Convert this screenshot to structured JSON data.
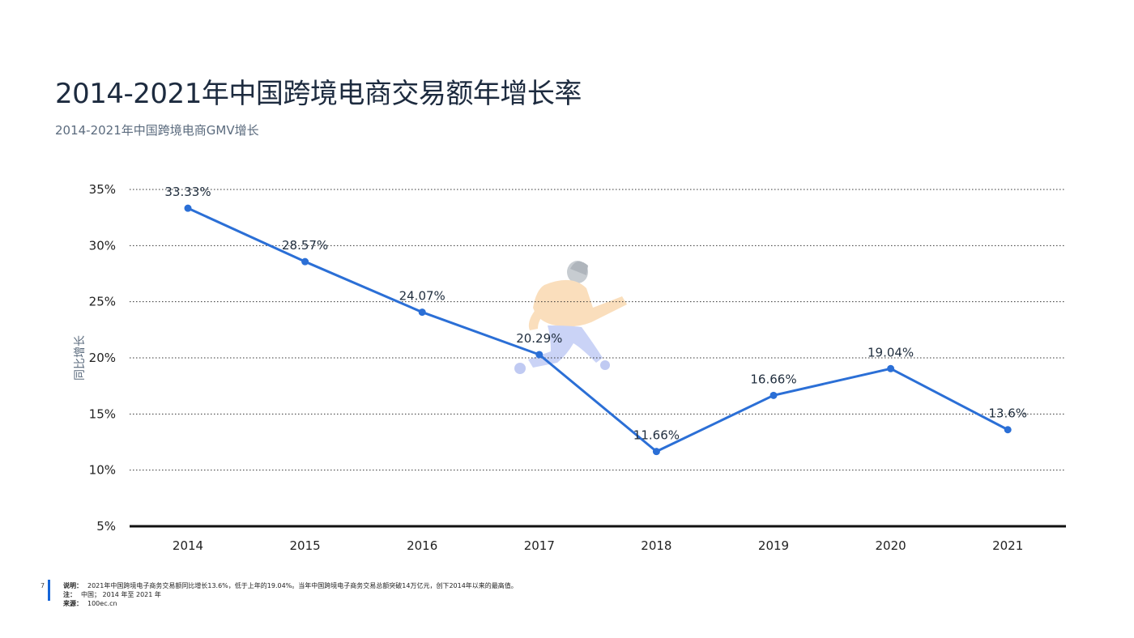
{
  "header": {
    "title": "2014-2021年中国跨境电商交易额年增长率",
    "subtitle": "2014-2021年中国跨境电商GMV增长"
  },
  "chart_data": {
    "type": "line",
    "categories": [
      "2014",
      "2015",
      "2016",
      "2017",
      "2018",
      "2019",
      "2020",
      "2021"
    ],
    "values": [
      33.33,
      28.57,
      24.07,
      20.29,
      11.66,
      16.66,
      19.04,
      13.6
    ],
    "data_labels": [
      "33.33%",
      "28.57%",
      "24.07%",
      "20.29%",
      "11.66%",
      "16.66%",
      "19.04%",
      "13.6%"
    ],
    "ylabel": "同比增长",
    "ylim": [
      5,
      35
    ],
    "yticks": [
      "5%",
      "10%",
      "15%",
      "20%",
      "25%",
      "30%",
      "35%"
    ],
    "ytick_values": [
      5,
      10,
      15,
      20,
      25,
      30,
      35
    ],
    "grid": "dotted-horizontal",
    "line_color": "#2b6fd6"
  },
  "footer": {
    "page_number": "7",
    "note1_label": "说明：",
    "note1_text": "2021年中国跨境电子商务交易额同比增长13.6%，低于上年的19.04%。当年中国跨境电子商务交易总额突破14万亿元，创下2014年以来的最高值。",
    "note2_label": "注：",
    "note2_text": "中国； 2014 年至 2021 年",
    "note3_label": "来源：",
    "note3_text": "100ec.cn"
  }
}
